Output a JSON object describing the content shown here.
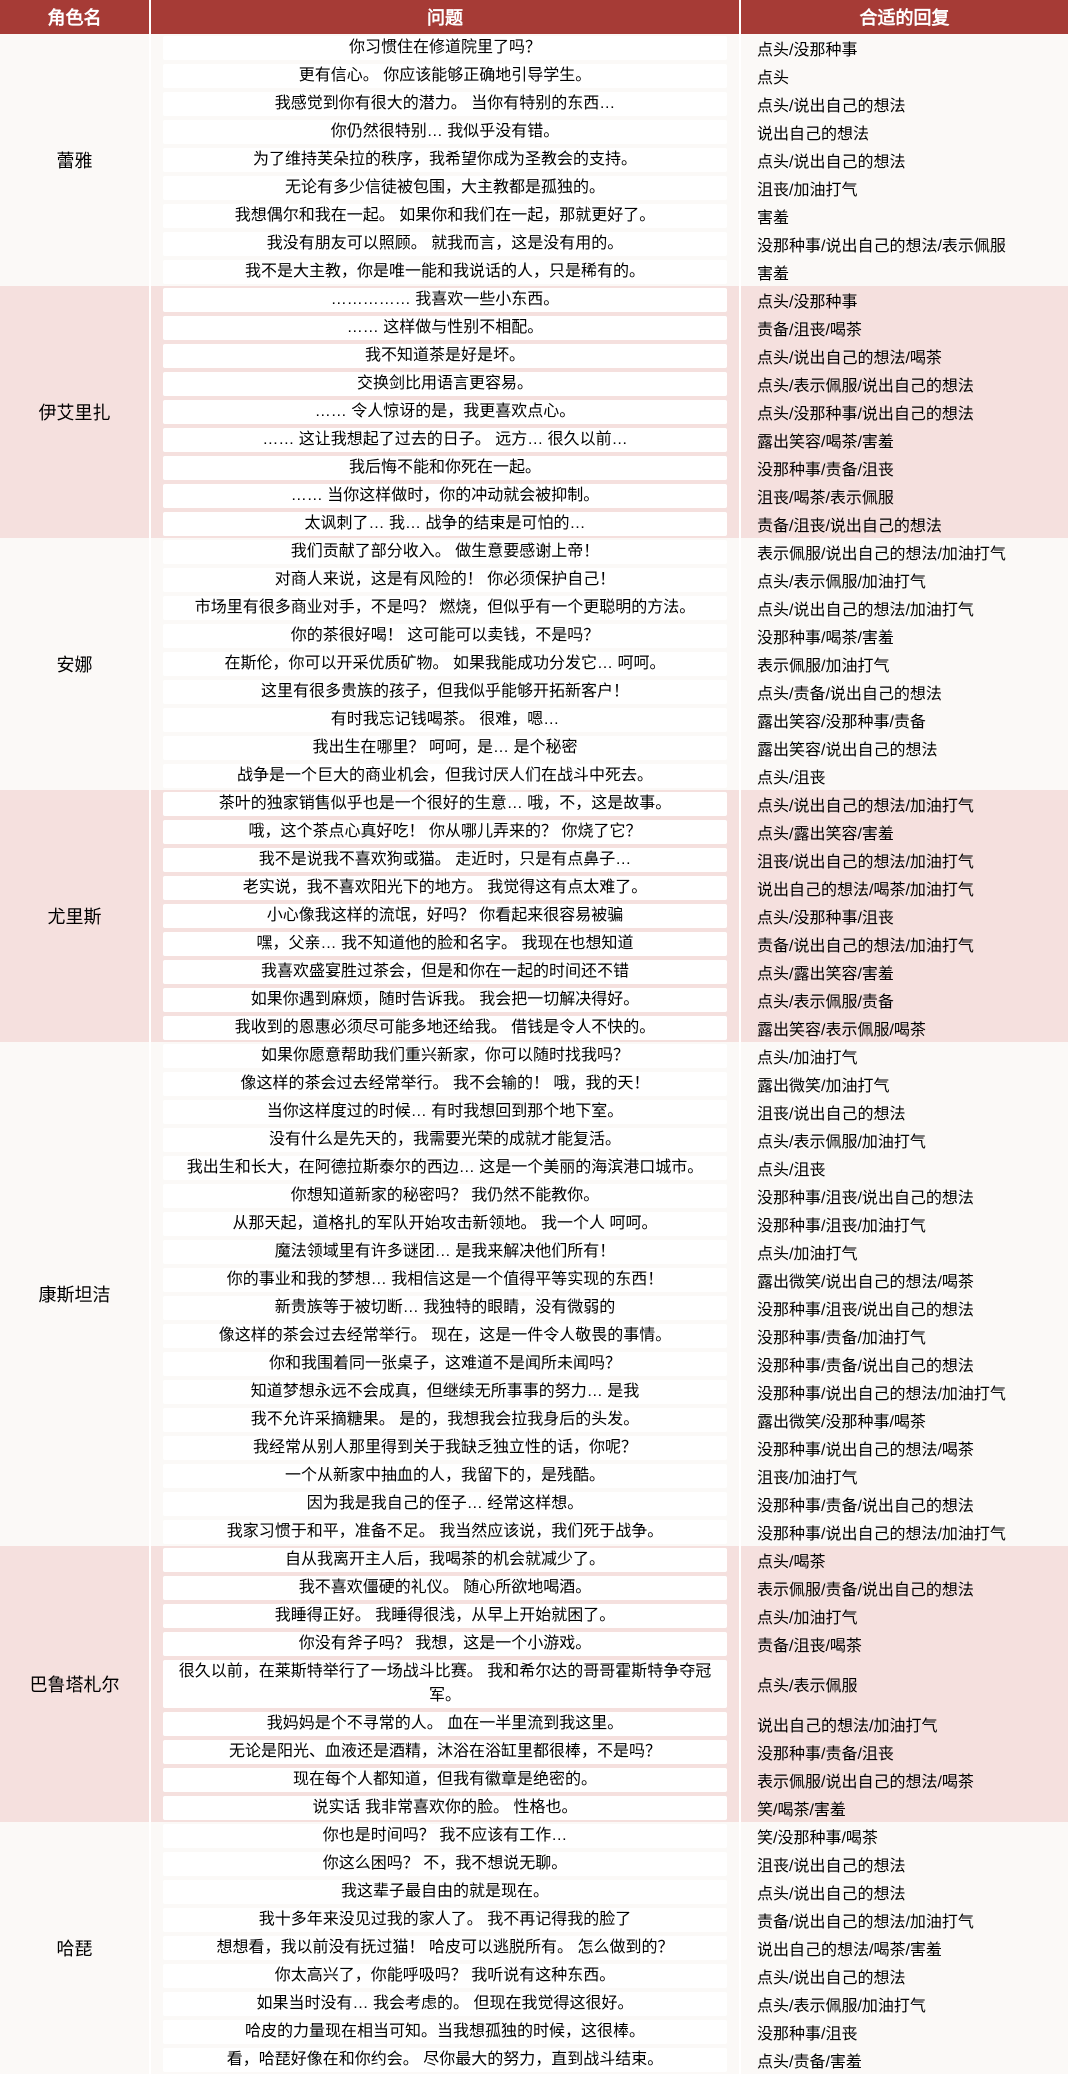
{
  "headers": {
    "char": "角色名",
    "question": "问题",
    "answer": "合适的回复"
  },
  "colors": {
    "header_bg": "#a63b36",
    "header_text": "#ffffff",
    "group_light": "#fbf9f7",
    "group_dark": "#f5e0de"
  },
  "groups": [
    {
      "name": "蕾雅",
      "shade": "light",
      "rows": [
        {
          "q": "你习惯住在修道院里了吗？",
          "a": "点头/没那种事"
        },
        {
          "q": "更有信心。 你应该能够正确地引导学生。",
          "a": "点头"
        },
        {
          "q": "我感觉到你有很大的潜力。 当你有特别的东西…",
          "a": "点头/说出自己的想法"
        },
        {
          "q": "你仍然很特别… 我似乎没有错。",
          "a": "说出自己的想法"
        },
        {
          "q": "为了维持芙朵拉的秩序，我希望你成为圣教会的支持。",
          "a": "点头/说出自己的想法"
        },
        {
          "q": "无论有多少信徒被包围，大主教都是孤独的。",
          "a": "沮丧/加油打气"
        },
        {
          "q": "我想偶尔和我在一起。 如果你和我们在一起，那就更好了。",
          "a": "害羞"
        },
        {
          "q": "我没有朋友可以照顾。 就我而言，这是没有用的。",
          "a": "没那种事/说出自己的想法/表示佩服"
        },
        {
          "q": "我不是大主教，你是唯一能和我说话的人，只是稀有的。",
          "a": "害羞"
        }
      ]
    },
    {
      "name": "伊艾里扎",
      "shade": "dark",
      "rows": [
        {
          "q": "…………… 我喜欢一些小东西。",
          "a": "点头/没那种事"
        },
        {
          "q": "…… 这样做与性别不相配。",
          "a": "责备/沮丧/喝茶"
        },
        {
          "q": "我不知道茶是好是坏。",
          "a": "点头/说出自己的想法/喝茶"
        },
        {
          "q": "交换剑比用语言更容易。",
          "a": "点头/表示佩服/说出自己的想法"
        },
        {
          "q": "…… 令人惊讶的是，我更喜欢点心。",
          "a": "点头/没那种事/说出自己的想法"
        },
        {
          "q": "…… 这让我想起了过去的日子。 远方… 很久以前…",
          "a": "露出笑容/喝茶/害羞"
        },
        {
          "q": "我后悔不能和你死在一起。",
          "a": "没那种事/责备/沮丧"
        },
        {
          "q": "…… 当你这样做时，你的冲动就会被抑制。",
          "a": "沮丧/喝茶/表示佩服"
        },
        {
          "q": "太讽刺了… 我… 战争的结束是可怕的…",
          "a": "责备/沮丧/说出自己的想法"
        }
      ]
    },
    {
      "name": "安娜",
      "shade": "light",
      "rows": [
        {
          "q": "我们贡献了部分收入。 做生意要感谢上帝！",
          "a": "表示佩服/说出自己的想法/加油打气"
        },
        {
          "q": "对商人来说，这是有风险的！ 你必须保护自己！",
          "a": "点头/表示佩服/加油打气"
        },
        {
          "q": "市场里有很多商业对手，不是吗？ 燃烧，但似乎有一个更聪明的方法。",
          "a": "点头/说出自己的想法/加油打气"
        },
        {
          "q": "你的茶很好喝！ 这可能可以卖钱，不是吗？",
          "a": "没那种事/喝茶/害羞"
        },
        {
          "q": "在斯伦，你可以开采优质矿物。 如果我能成功分发它… 呵呵。",
          "a": "表示佩服/加油打气"
        },
        {
          "q": "这里有很多贵族的孩子，但我似乎能够开拓新客户！",
          "a": "点头/责备/说出自己的想法"
        },
        {
          "q": "有时我忘记钱喝茶。 很难，嗯…",
          "a": "露出笑容/没那种事/责备"
        },
        {
          "q": "我出生在哪里？ 呵呵，是… 是个秘密",
          "a": "露出笑容/说出自己的想法"
        },
        {
          "q": "战争是一个巨大的商业机会，但我讨厌人们在战斗中死去。",
          "a": "点头/沮丧"
        }
      ]
    },
    {
      "name": "尤里斯",
      "shade": "dark",
      "rows": [
        {
          "q": "茶叶的独家销售似乎也是一个很好的生意… 哦，不，这是故事。",
          "a": "点头/说出自己的想法/加油打气"
        },
        {
          "q": "哦，这个茶点心真好吃！ 你从哪儿弄来的？ 你烧了它？",
          "a": "点头/露出笑容/害羞"
        },
        {
          "q": "我不是说我不喜欢狗或猫。 走近时，只是有点鼻子…",
          "a": "沮丧/说出自己的想法/加油打气"
        },
        {
          "q": "老实说，我不喜欢阳光下的地方。 我觉得这有点太难了。",
          "a": "说出自己的想法/喝茶/加油打气"
        },
        {
          "q": "小心像我这样的流氓，好吗？ 你看起来很容易被骗",
          "a": "点头/没那种事/沮丧"
        },
        {
          "q": "嘿，父亲… 我不知道他的脸和名字。 我现在也想知道",
          "a": "责备/说出自己的想法/加油打气"
        },
        {
          "q": "我喜欢盛宴胜过茶会，但是和你在一起的时间还不错",
          "a": "点头/露出笑容/害羞"
        },
        {
          "q": "如果你遇到麻烦，随时告诉我。 我会把一切解决得好。",
          "a": "点头/表示佩服/责备"
        },
        {
          "q": "我收到的恩惠必须尽可能多地还给我。 借钱是令人不快的。",
          "a": "露出笑容/表示佩服/喝茶"
        }
      ]
    },
    {
      "name": "康斯坦洁",
      "shade": "light",
      "rows": [
        {
          "q": "如果你愿意帮助我们重兴新家，你可以随时找我吗？",
          "a": "点头/加油打气"
        },
        {
          "q": "像这样的茶会过去经常举行。 我不会输的！ 哦，我的天！",
          "a": "露出微笑/加油打气"
        },
        {
          "q": "当你这样度过的时候… 有时我想回到那个地下室。",
          "a": "沮丧/说出自己的想法"
        },
        {
          "q": "没有什么是先天的，我需要光荣的成就才能复活。",
          "a": "点头/表示佩服/加油打气"
        },
        {
          "q": "我出生和长大，在阿德拉斯泰尔的西边… 这是一个美丽的海滨港口城市。",
          "a": "点头/沮丧"
        },
        {
          "q": "你想知道新家的秘密吗？ 我仍然不能教你。",
          "a": "没那种事/沮丧/说出自己的想法"
        },
        {
          "q": "从那天起，道格扎的军队开始攻击新领地。 我一个人 呵呵。",
          "a": "没那种事/沮丧/加油打气"
        },
        {
          "q": "魔法领域里有许多谜团… 是我来解决他们所有！",
          "a": "点头/加油打气"
        },
        {
          "q": "你的事业和我的梦想… 我相信这是一个值得平等实现的东西！",
          "a": "露出微笑/说出自己的想法/喝茶"
        },
        {
          "q": "新贵族等于被切断… 我独特的眼睛，没有微弱的",
          "a": "没那种事/沮丧/说出自己的想法"
        },
        {
          "q": "像这样的茶会过去经常举行。 现在，这是一件令人敬畏的事情。",
          "a": "没那种事/责备/加油打气"
        },
        {
          "q": "你和我围着同一张桌子，这难道不是闻所未闻吗？",
          "a": "没那种事/责备/说出自己的想法"
        },
        {
          "q": "知道梦想永远不会成真，但继续无所事事的努力… 是我",
          "a": "没那种事/说出自己的想法/加油打气"
        },
        {
          "q": "我不允许采摘糖果。 是的，我想我会拉我身后的头发。",
          "a": "露出微笑/没那种事/喝茶"
        },
        {
          "q": "我经常从别人那里得到关于我缺乏独立性的话，你呢？",
          "a": "没那种事/说出自己的想法/喝茶"
        },
        {
          "q": "一个从新家中抽血的人，我留下的，是残酷。",
          "a": "沮丧/加油打气"
        },
        {
          "q": "因为我是我自己的侄子… 经常这样想。",
          "a": "没那种事/责备/说出自己的想法"
        },
        {
          "q": "我家习惯于和平，准备不足。 我当然应该说，我们死于战争。",
          "a": "没那种事/说出自己的想法/加油打气"
        }
      ]
    },
    {
      "name": "巴鲁塔札尔",
      "shade": "dark",
      "rows": [
        {
          "q": "自从我离开主人后，我喝茶的机会就减少了。",
          "a": "点头/喝茶"
        },
        {
          "q": "我不喜欢僵硬的礼仪。 随心所欲地喝酒。",
          "a": "表示佩服/责备/说出自己的想法"
        },
        {
          "q": "我睡得正好。 我睡得很浅，从早上开始就困了。",
          "a": "点头/加油打气"
        },
        {
          "q": "你没有斧子吗？ 我想，这是一个小游戏。",
          "a": "责备/沮丧/喝茶"
        },
        {
          "q": "很久以前，在莱斯特举行了一场战斗比赛。 我和希尔达的哥哥霍斯特争夺冠军。",
          "a": "点头/表示佩服"
        },
        {
          "q": "我妈妈是个不寻常的人。 血在一半里流到我这里。",
          "a": "说出自己的想法/加油打气"
        },
        {
          "q": "无论是阳光、血液还是酒精，沐浴在浴缸里都很棒，不是吗？",
          "a": "没那种事/责备/沮丧"
        },
        {
          "q": "现在每个人都知道，但我有徽章是绝密的。",
          "a": "表示佩服/说出自己的想法/喝茶"
        },
        {
          "q": "说实话 我非常喜欢你的脸。 性格也。",
          "a": "笑/喝茶/害羞"
        }
      ]
    },
    {
      "name": "哈琵",
      "shade": "light",
      "rows": [
        {
          "q": "你也是时间吗？ 我不应该有工作…",
          "a": "笑/没那种事/喝茶"
        },
        {
          "q": "你这么困吗？ 不，我不想说无聊。",
          "a": "沮丧/说出自己的想法"
        },
        {
          "q": "我这辈子最自由的就是现在。",
          "a": "点头/说出自己的想法"
        },
        {
          "q": "我十多年来没见过我的家人了。 我不再记得我的脸了",
          "a": "责备/说出自己的想法/加油打气"
        },
        {
          "q": "想想看，我以前没有抚过猫！ 哈皮可以逃脱所有。 怎么做到的？",
          "a": "说出自己的想法/喝茶/害羞"
        },
        {
          "q": "你太高兴了，你能呼吸吗？ 我听说有这种东西。",
          "a": "点头/说出自己的想法"
        },
        {
          "q": "如果当时没有… 我会考虑的。 但现在我觉得这很好。",
          "a": "点头/表示佩服/加油打气"
        },
        {
          "q": "哈皮的力量现在相当可知。当我想孤独的时候，这很棒。",
          "a": "没那种事/沮丧"
        },
        {
          "q": "看，哈琵好像在和你约会。 尽你最大的努力，直到战斗结束。",
          "a": "点头/责备/害羞"
        }
      ]
    }
  ]
}
